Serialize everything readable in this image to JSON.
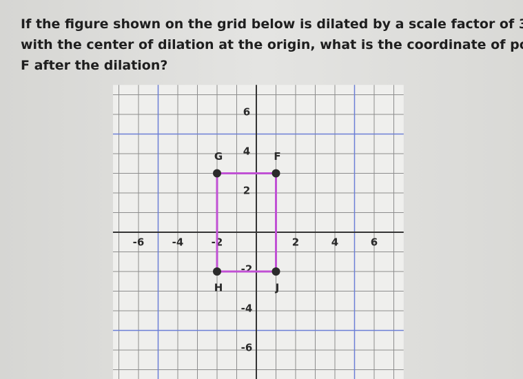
{
  "question": [
    "If the figure shown on the grid below is dilated by a scale factor of 3",
    "with the center of dilation at the origin, what is the coordinate of point",
    "F after the dilation?"
  ],
  "grid": {
    "xlim": [
      -7.3,
      7.5
    ],
    "ylim": [
      -7.5,
      7.5
    ],
    "xticks": [
      -6,
      -4,
      -2,
      2,
      4,
      6
    ],
    "yticks": [
      6,
      4,
      2,
      -2,
      -4,
      -6
    ],
    "highlight_lines": [
      -5,
      5
    ]
  },
  "figure": {
    "color": "#c050d4",
    "points": [
      {
        "label": "G",
        "x": -2,
        "y": 3
      },
      {
        "label": "F",
        "x": 1,
        "y": 3
      },
      {
        "label": "J",
        "x": 1,
        "y": -2
      },
      {
        "label": "H",
        "x": -2,
        "y": -2
      }
    ]
  }
}
